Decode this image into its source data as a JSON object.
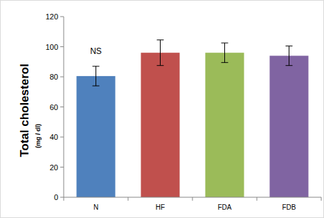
{
  "chart_data": {
    "type": "bar",
    "ylabel": "Total cholesterol",
    "ylabel_units": "(mg / dl)",
    "categories": [
      "N",
      "HF",
      "FDA",
      "FDB"
    ],
    "values": [
      80.5,
      96,
      96,
      94
    ],
    "errors": [
      6.5,
      8.5,
      6.5,
      6.5
    ],
    "colors": [
      "#4f81bd",
      "#c0504d",
      "#9bbb59",
      "#8064a2"
    ],
    "ylim": [
      0,
      120
    ],
    "yticks": [
      0,
      20,
      40,
      60,
      80,
      100,
      120
    ],
    "grid": false,
    "annotations": [
      {
        "text": "NS",
        "category": 0,
        "y": 95
      }
    ]
  }
}
